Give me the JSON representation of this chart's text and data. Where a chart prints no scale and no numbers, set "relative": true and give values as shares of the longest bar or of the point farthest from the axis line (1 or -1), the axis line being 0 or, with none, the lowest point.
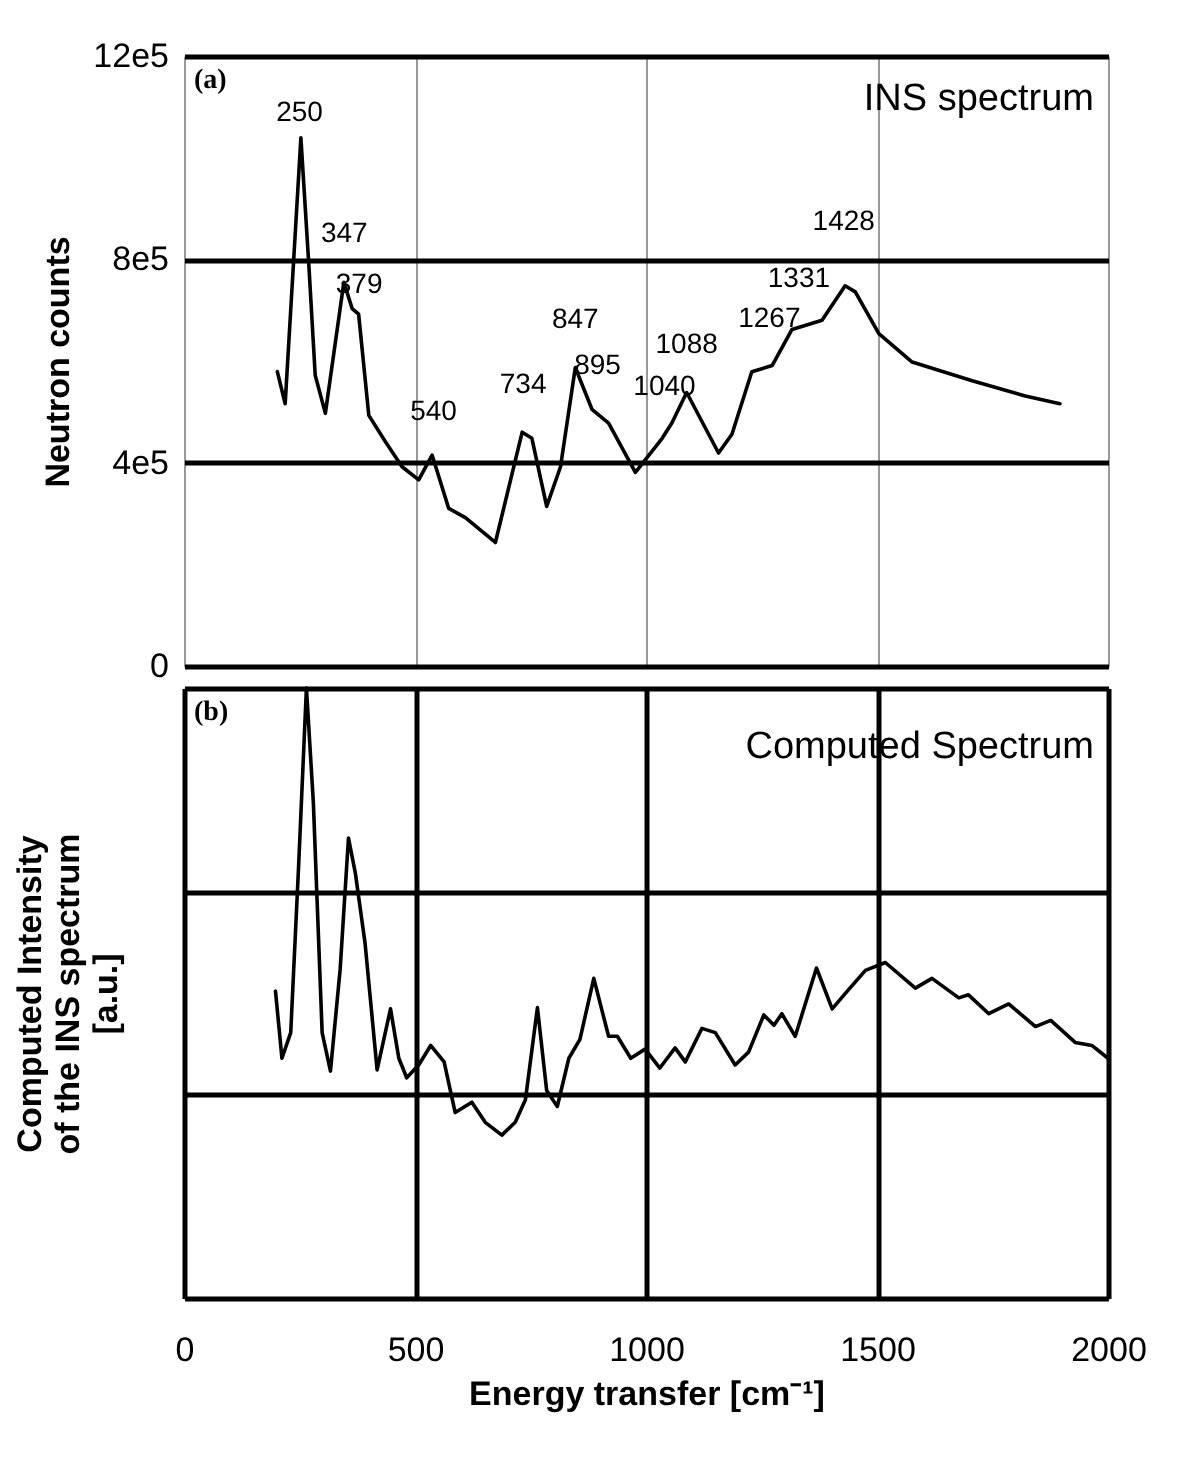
{
  "chart_data": [
    {
      "type": "line",
      "title": "INS spectrum",
      "ylabel": "Neutron counts",
      "xlim": [
        0,
        2000
      ],
      "xticks": [
        0,
        500,
        1000,
        1500,
        2000
      ],
      "ylim": [
        0,
        1200000
      ],
      "yticks": [
        0,
        {
          "value": 400000,
          "label": "4e5"
        },
        {
          "value": 800000,
          "label": "8e5"
        },
        {
          "value": 1200000,
          "label": "12e5"
        }
      ],
      "tick_labels": "y",
      "grid": true,
      "annotations": [
        "(a)",
        {
          "text": "250",
          "x": 250,
          "y": 993000
        },
        {
          "text": "347",
          "x": 347,
          "y": 755000
        },
        {
          "text": "379",
          "x": 379,
          "y": 691000
        },
        {
          "text": "540",
          "x": 540,
          "y": 406000
        },
        {
          "text": "734",
          "x": 734,
          "y": 459000
        },
        {
          "text": "847",
          "x": 847,
          "y": 587000
        },
        {
          "text": "895",
          "x": 895,
          "y": 496000
        },
        {
          "text": "1040",
          "x": 1040,
          "y": 455000
        },
        {
          "text": "1088",
          "x": 1088,
          "y": 538000
        },
        {
          "text": "1267",
          "x": 1267,
          "y": 589000
        },
        {
          "text": "1331",
          "x": 1331,
          "y": 666000
        },
        {
          "text": "1428",
          "x": 1428,
          "y": 744000
        }
      ],
      "series": [
        {
          "color": "#000000",
          "x": [
            202,
            219,
            253,
            270,
            284,
            306,
            346,
            364,
            378,
            400,
            436,
            472,
            508,
            537,
            573,
            609,
            674,
            732,
            753,
            785,
            815,
            847,
            883,
            919,
            977,
            1035,
            1056,
            1088,
            1157,
            1186,
            1229,
            1273,
            1316,
            1381,
            1431,
            1453,
            1504,
            1576,
            1706,
            1821,
            1896
          ],
          "values": [
            579000,
            516000,
            1039000,
            792000,
            572000,
            497000,
            755000,
            703000,
            692000,
            493000,
            441000,
            392000,
            366000,
            415000,
            310000,
            292000,
            243000,
            460000,
            448000,
            314000,
            392000,
            587000,
            505000,
            478000,
            381000,
            448000,
            478000,
            538000,
            419000,
            456000,
            579000,
            591000,
            662000,
            680000,
            748000,
            736000,
            654000,
            598000,
            561000,
            531000,
            516000
          ]
        }
      ]
    },
    {
      "type": "line",
      "title": "Computed Spectrum",
      "ylabel": "Computed Intensity\nof the INS spectrum\n[a.u.]",
      "xlabel": "Energy transfer [cm⁻¹]",
      "xlim": [
        0,
        2000
      ],
      "xticks": [
        0,
        500,
        1000,
        1500,
        2000
      ],
      "relative": true,
      "tick_labels": "x",
      "grid": true,
      "annotations": [
        "(b)"
      ],
      "series": [
        {
          "color": "#000000",
          "x": [
            198,
            212,
            231,
            248,
            265,
            280,
            299,
            317,
            338,
            356,
            371,
            392,
            418,
            447,
            465,
            482,
            508,
            534,
            563,
            587,
            623,
            652,
            688,
            717,
            739,
            765,
            785,
            808,
            833,
            857,
            887,
            919,
            938,
            967,
            998,
            1030,
            1063,
            1085,
            1121,
            1150,
            1193,
            1222,
            1255,
            1277,
            1294,
            1323,
            1369,
            1403,
            1431,
            1475,
            1518,
            1583,
            1619,
            1677,
            1698,
            1742,
            1785,
            1843,
            1876,
            1929,
            1965,
            2000
          ],
          "values": [
            0.503,
            0.393,
            0.435,
            0.707,
            1.0,
            0.812,
            0.435,
            0.372,
            0.539,
            0.754,
            0.696,
            0.581,
            0.374,
            0.474,
            0.393,
            0.361,
            0.382,
            0.414,
            0.387,
            0.304,
            0.321,
            0.288,
            0.267,
            0.288,
            0.325,
            0.476,
            0.34,
            0.314,
            0.393,
            0.424,
            0.524,
            0.429,
            0.429,
            0.393,
            0.408,
            0.377,
            0.41,
            0.387,
            0.442,
            0.435,
            0.382,
            0.403,
            0.464,
            0.447,
            0.466,
            0.429,
            0.541,
            0.474,
            0.499,
            0.537,
            0.55,
            0.508,
            0.524,
            0.492,
            0.497,
            0.466,
            0.482,
            0.445,
            0.455,
            0.419,
            0.414,
            0.393
          ]
        }
      ]
    }
  ]
}
